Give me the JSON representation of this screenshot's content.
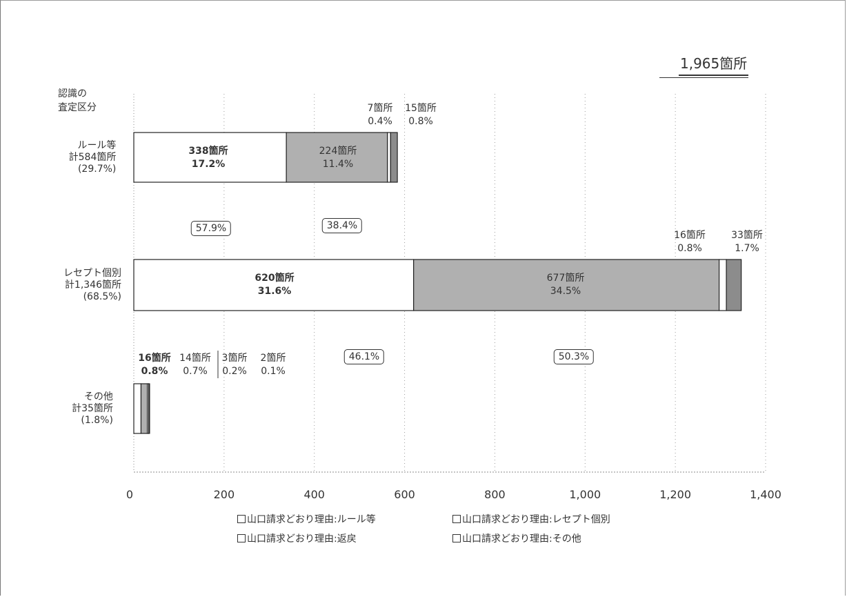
{
  "chart_data": {
    "type": "bar",
    "orientation": "horizontal",
    "stacked": true,
    "total_label": "1,965箇所",
    "ycat_title": "認識の\n査定区分",
    "categories": [
      {
        "label": "ルール等\n計584箇所\n(29.7%)"
      },
      {
        "label": "レセプト個別\n計1,346箇所\n(68.5%)"
      },
      {
        "label": "その他\n計35箇所\n(1.8%)"
      }
    ],
    "series": [
      {
        "name": "山口請求どおり理由:ルール等",
        "values": [
          338,
          620,
          16
        ],
        "color": "#ffffff"
      },
      {
        "name": "山口請求どおり理由:レセプト個別",
        "values": [
          224,
          677,
          14
        ],
        "color": "#b0b0b0"
      },
      {
        "name": "山口請求どおり理由:返戻",
        "values": [
          7,
          16,
          3
        ],
        "color": "#ffffff"
      },
      {
        "name": "山口請求どおり理由:その他",
        "values": [
          15,
          33,
          2
        ],
        "color": "#8c8c8c"
      }
    ],
    "segment_labels": [
      [
        [
          "338箇所",
          "17.2%"
        ],
        [
          "224箇所",
          "11.4%"
        ],
        [
          "7箇所",
          "0.4%"
        ],
        [
          "15箇所",
          "0.8%"
        ]
      ],
      [
        [
          "620箇所",
          "31.6%"
        ],
        [
          "677箇所",
          "34.5%"
        ],
        [
          "16箇所",
          "0.8%"
        ],
        [
          "33箇所",
          "1.7%"
        ]
      ],
      [
        [
          "16箇所",
          "0.8%"
        ],
        [
          "14箇所",
          "0.7%"
        ],
        [
          "3箇所",
          "0.2%"
        ],
        [
          "2箇所",
          "0.1%"
        ]
      ]
    ],
    "share_labels": [
      [
        "57.9%",
        "38.4%"
      ],
      [
        "46.1%",
        "50.3%"
      ]
    ],
    "xlim": [
      0,
      1400
    ],
    "xticks": [
      0,
      200,
      400,
      600,
      800,
      1000,
      1200,
      1400
    ],
    "xtick_labels": [
      "0",
      "200",
      "400",
      "600",
      "800",
      "1,000",
      "1,200",
      "1,400"
    ],
    "grid": "vertical dotted",
    "legend": "bottom"
  }
}
